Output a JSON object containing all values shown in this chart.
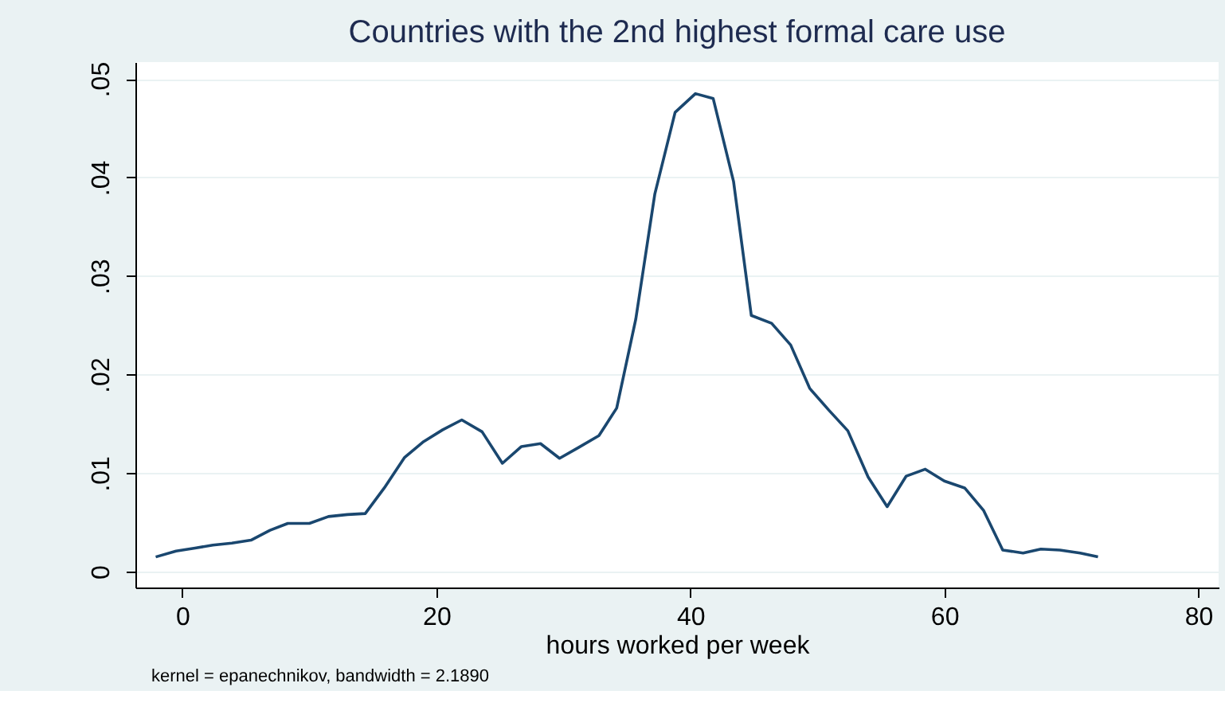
{
  "chart_data": {
    "type": "line",
    "title": "Countries with the 2nd highest formal care use",
    "xlabel": "hours worked per week",
    "annotations": [
      "kernel = epanechnikov, bandwidth = 2.1890"
    ],
    "series": [
      {
        "color": "#1a476f",
        "x": [
          -2.1,
          -0.5,
          1.0,
          2.4,
          3.9,
          5.4,
          6.9,
          8.3,
          10.0,
          11.5,
          13.0,
          14.4,
          15.9,
          17.5,
          19.0,
          20.5,
          22.0,
          23.6,
          25.2,
          26.7,
          28.2,
          29.7,
          31.2,
          32.8,
          34.2,
          35.7,
          37.2,
          38.8,
          40.4,
          41.8,
          43.4,
          44.8,
          46.4,
          47.9,
          49.4,
          50.9,
          52.4,
          54.0,
          55.5,
          57.0,
          58.5,
          60.0,
          61.6,
          63.1,
          64.6,
          66.2,
          67.6,
          69.1,
          70.7,
          72.1
        ],
        "values": [
          0.0015,
          0.0021,
          0.0024,
          0.0027,
          0.0029,
          0.0032,
          0.0042,
          0.0049,
          0.0049,
          0.0056,
          0.0058,
          0.0059,
          0.0085,
          0.0116,
          0.0132,
          0.0144,
          0.0154,
          0.0142,
          0.011,
          0.0127,
          0.013,
          0.0115,
          0.0126,
          0.0138,
          0.0166,
          0.0256,
          0.0383,
          0.0466,
          0.0485,
          0.048,
          0.0396,
          0.026,
          0.0252,
          0.023,
          0.0186,
          0.0164,
          0.0143,
          0.0096,
          0.0066,
          0.0097,
          0.0104,
          0.0092,
          0.0085,
          0.0062,
          0.0022,
          0.0019,
          0.0023,
          0.0022,
          0.0019,
          0.0015
        ]
      }
    ],
    "xlim": [
      -3.7,
      81.6
    ],
    "xticks": [
      0,
      20,
      40,
      60,
      80
    ],
    "ylim": [
      -0.0016,
      0.0517
    ],
    "yticks": [
      {
        "value": 0,
        "label": "0"
      },
      {
        "value": 0.01,
        "label": ".01"
      },
      {
        "value": 0.02,
        "label": ".02"
      },
      {
        "value": 0.03,
        "label": ".03"
      },
      {
        "value": 0.04,
        "label": ".04"
      },
      {
        "value": 0.05,
        "label": ".05"
      }
    ],
    "grid": "y",
    "marker": "none",
    "line_style": "solid"
  }
}
